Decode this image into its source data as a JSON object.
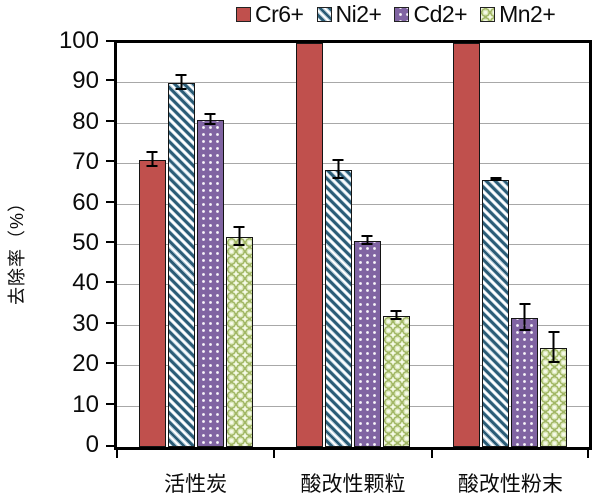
{
  "chart_data": {
    "type": "bar",
    "title": "",
    "ylabel": "去除率（%）",
    "xlabel": "",
    "categories": [
      "活性炭",
      "酸改性颗粒",
      "酸改性粉末"
    ],
    "series": [
      {
        "name": "Cr6+",
        "color": "#c0504d",
        "pattern": "solid",
        "values": [
          71,
          100,
          100
        ],
        "errors": [
          2,
          0,
          0
        ]
      },
      {
        "name": "Ni2+",
        "color": "#2b5c76",
        "pattern": "diagonal-stripes",
        "values": [
          90,
          68.5,
          66
        ],
        "errors": [
          2,
          2.5,
          0.5
        ]
      },
      {
        "name": "Cd2+",
        "color": "#8064a2",
        "pattern": "dots",
        "values": [
          81,
          51,
          32
        ],
        "errors": [
          1.5,
          1.3,
          3.5
        ]
      },
      {
        "name": "Mn2+",
        "color": "#a2b766",
        "pattern": "spheres",
        "values": [
          52,
          32.5,
          24.5
        ],
        "errors": [
          2.5,
          1.2,
          4
        ]
      }
    ],
    "ylim": [
      0,
      100
    ],
    "yticks": [
      0,
      10,
      20,
      30,
      40,
      50,
      60,
      70,
      80,
      90,
      100
    ],
    "grid": true,
    "legend_position": "top",
    "error_bars": true
  }
}
